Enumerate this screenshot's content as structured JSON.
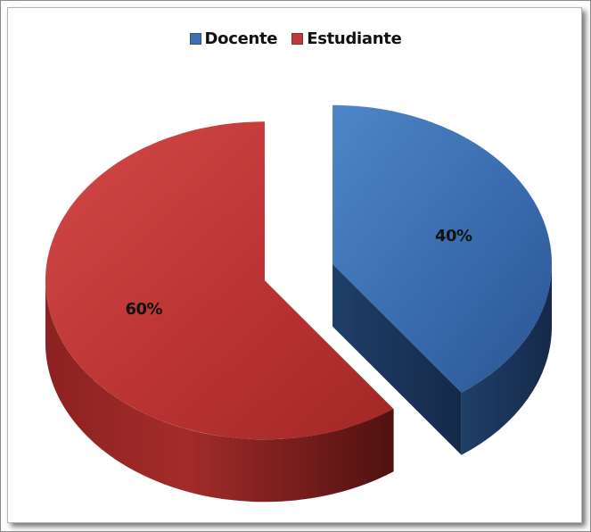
{
  "chart_data": {
    "type": "pie",
    "style": "3d-exploded",
    "categories": [
      "Docente",
      "Estudiante"
    ],
    "values": [
      40,
      60
    ],
    "data_labels": [
      "40%",
      "60%"
    ],
    "colors": {
      "Docente": "#3a6fb5",
      "Estudiante": "#c0383a"
    },
    "legend": {
      "position": "top",
      "entries": [
        "Docente",
        "Estudiante"
      ]
    }
  }
}
